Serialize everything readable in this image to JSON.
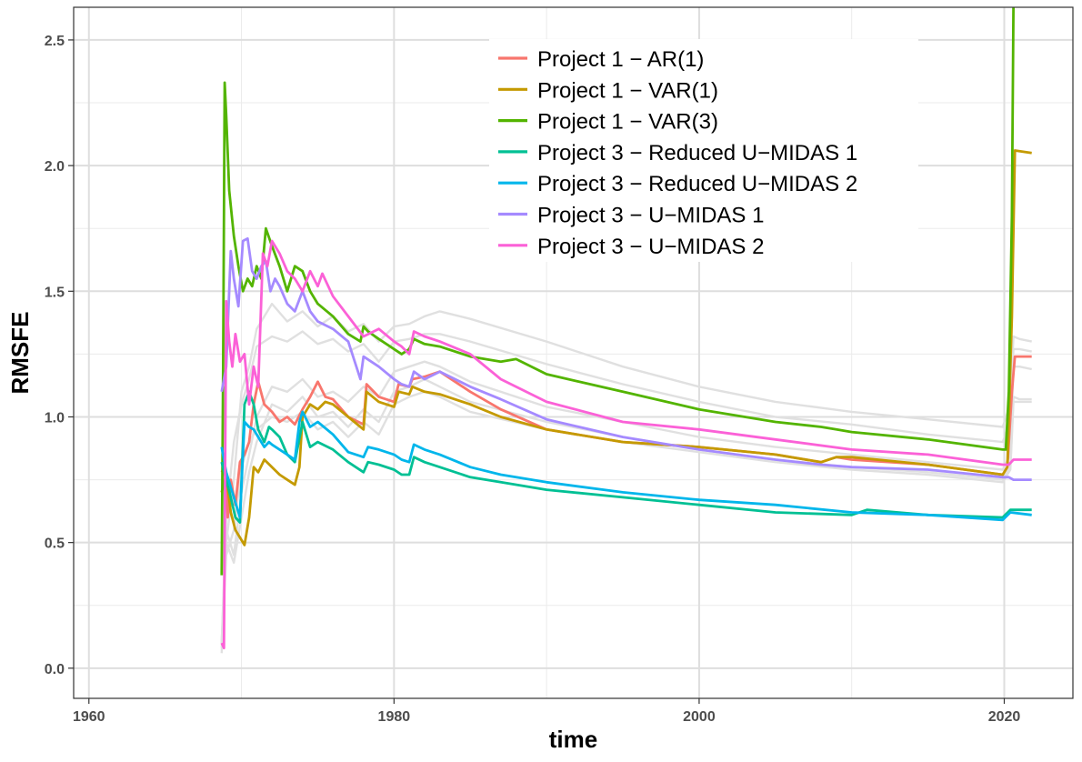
{
  "chart_data": {
    "type": "line",
    "title": "",
    "xlabel": "time",
    "ylabel": "RMSFE",
    "xlim": [
      1959,
      2024.5
    ],
    "ylim": [
      -0.12,
      2.63
    ],
    "x_ticks": [
      1960,
      1980,
      2000,
      2020
    ],
    "x_minor_ticks": [
      1970,
      1990,
      2010
    ],
    "y_ticks": [
      0.0,
      0.5,
      1.0,
      1.5,
      2.0,
      2.5
    ],
    "y_tick_labels": [
      "0.0",
      "0.5",
      "1.0",
      "1.5",
      "2.0",
      "2.5"
    ],
    "grid": true,
    "legend_position": "top-center (inside plot)",
    "background_series_color": "#e0e0e0",
    "background_series": [
      {
        "x": [
          1968.7,
          1969.0,
          1969.5,
          1970.0,
          1970.5,
          1971.0,
          1972.0,
          1973.0,
          1974.0,
          1975.0,
          1976.0,
          1977.0,
          1978.0,
          1979.0,
          1980.0,
          1981.0,
          1982.0,
          1983.0,
          1985.0,
          1990.0,
          1995.0,
          2000.0,
          2005.0,
          2010.0,
          2015.0,
          2019.9,
          2020.4,
          2020.6,
          2021.0,
          2021.8
        ],
        "y": [
          0.06,
          0.5,
          0.75,
          1.1,
          1.2,
          1.35,
          1.45,
          1.38,
          1.42,
          1.36,
          1.4,
          1.34,
          1.37,
          1.3,
          1.36,
          1.37,
          1.4,
          1.42,
          1.39,
          1.3,
          1.2,
          1.12,
          1.06,
          1.02,
          0.99,
          0.96,
          1.05,
          1.32,
          1.31,
          1.3
        ]
      },
      {
        "x": [
          1968.7,
          1969.0,
          1969.5,
          1970.0,
          1970.5,
          1971.0,
          1972.0,
          1973.0,
          1974.0,
          1975.0,
          1976.0,
          1977.0,
          1978.0,
          1979.0,
          1980.0,
          1981.0,
          1982.0,
          1983.0,
          1985.0,
          1990.0,
          1995.0,
          2000.0,
          2005.0,
          2010.0,
          2015.0,
          2019.9,
          2020.4,
          2020.6,
          2021.0,
          2021.8
        ],
        "y": [
          0.1,
          0.6,
          0.9,
          1.05,
          1.15,
          1.28,
          1.32,
          1.3,
          1.34,
          1.29,
          1.31,
          1.26,
          1.29,
          1.22,
          1.3,
          1.31,
          1.33,
          1.33,
          1.3,
          1.21,
          1.13,
          1.06,
          1.0,
          0.97,
          0.93,
          0.9,
          0.98,
          1.27,
          1.27,
          1.26
        ]
      },
      {
        "x": [
          1968.7,
          1969.0,
          1969.5,
          1970.0,
          1970.5,
          1971.0,
          1972.0,
          1973.0,
          1974.0,
          1975.0,
          1976.0,
          1977.0,
          1978.0,
          1979.0,
          1980.0,
          1981.0,
          1982.0,
          1983.0,
          1985.0,
          1990.0,
          1995.0,
          2000.0,
          2005.0,
          2010.0,
          2015.0,
          2019.9,
          2020.4,
          2020.6,
          2021.0,
          2021.8
        ],
        "y": [
          0.1,
          0.55,
          0.45,
          0.7,
          0.85,
          1.0,
          1.12,
          1.1,
          1.15,
          1.08,
          1.1,
          1.06,
          1.12,
          1.08,
          1.18,
          1.2,
          1.22,
          1.2,
          1.14,
          1.04,
          0.98,
          0.92,
          0.88,
          0.85,
          0.82,
          0.79,
          0.85,
          1.2,
          1.2,
          1.19
        ]
      },
      {
        "x": [
          1968.7,
          1969.0,
          1969.5,
          1970.0,
          1970.5,
          1971.0,
          1972.0,
          1973.0,
          1974.0,
          1975.0,
          1976.0,
          1977.0,
          1978.0,
          1979.0,
          1980.0,
          1981.0,
          1982.0,
          1983.0,
          1985.0,
          1990.0,
          1995.0,
          2000.0,
          2005.0,
          2010.0,
          2015.0,
          2019.9,
          2020.4,
          2020.6,
          2021.0,
          2021.8
        ],
        "y": [
          0.1,
          0.5,
          0.42,
          0.6,
          0.78,
          0.9,
          1.05,
          1.02,
          1.08,
          1.0,
          1.02,
          0.96,
          1.03,
          0.98,
          1.1,
          1.12,
          1.15,
          1.12,
          1.06,
          0.98,
          0.92,
          0.87,
          0.83,
          0.8,
          0.78,
          0.75,
          0.8,
          1.08,
          1.07,
          1.07
        ]
      },
      {
        "x": [
          1968.7,
          1969.0,
          1969.5,
          1970.0,
          1970.5,
          1971.0,
          1972.0,
          1973.0,
          1974.0,
          1975.0,
          1976.0,
          1977.0,
          1978.0,
          1979.0,
          1980.0,
          1981.0,
          1982.0,
          1983.0,
          1985.0,
          1990.0,
          1995.0,
          2000.0,
          2005.0,
          2010.0,
          2015.0,
          2019.9,
          2020.4,
          2020.6,
          2021.0,
          2021.8
        ],
        "y": [
          0.08,
          0.45,
          0.55,
          0.8,
          0.9,
          0.95,
          1.0,
          0.98,
          1.02,
          0.95,
          0.98,
          0.92,
          0.98,
          0.93,
          1.05,
          1.08,
          1.1,
          1.08,
          1.02,
          0.95,
          0.9,
          0.86,
          0.82,
          0.79,
          0.77,
          0.74,
          0.79,
          1.06,
          1.06,
          1.06
        ]
      }
    ],
    "series": [
      {
        "name": "Project 1 − AR(1)",
        "color": "#F8766D",
        "x": [
          1968.7,
          1968.9,
          1969.1,
          1969.3,
          1969.6,
          1969.9,
          1970.2,
          1970.5,
          1970.8,
          1971.1,
          1971.5,
          1972.0,
          1972.5,
          1973.0,
          1973.5,
          1974.0,
          1974.5,
          1975.0,
          1975.5,
          1976.0,
          1977.0,
          1978.0,
          1978.2,
          1979.0,
          1980.0,
          1980.3,
          1981.0,
          1981.2,
          1982.0,
          1983.0,
          1985.0,
          1987.0,
          1990.0,
          1995.0,
          2000.0,
          2005.0,
          2008.0,
          2009.0,
          2010.0,
          2015.0,
          2019.9,
          2020.2,
          2020.5,
          2020.7,
          2021.8
        ],
        "y": [
          0.78,
          0.8,
          0.6,
          0.75,
          0.65,
          0.82,
          0.85,
          0.9,
          1.05,
          1.14,
          1.05,
          1.02,
          0.98,
          1.0,
          0.97,
          1.03,
          1.08,
          1.14,
          1.08,
          1.07,
          1.0,
          0.97,
          1.13,
          1.08,
          1.06,
          1.13,
          1.12,
          1.15,
          1.16,
          1.18,
          1.1,
          1.03,
          0.95,
          0.9,
          0.88,
          0.85,
          0.82,
          0.84,
          0.83,
          0.81,
          0.77,
          0.8,
          1.1,
          1.24,
          1.24
        ]
      },
      {
        "name": "Project 1 − VAR(1)",
        "color": "#C49A00",
        "x": [
          1968.7,
          1968.9,
          1969.1,
          1969.3,
          1969.6,
          1969.9,
          1970.2,
          1970.5,
          1970.8,
          1971.1,
          1971.5,
          1972.0,
          1972.5,
          1973.0,
          1973.5,
          1973.8,
          1974.0,
          1974.5,
          1975.0,
          1975.5,
          1976.0,
          1977.0,
          1978.0,
          1978.2,
          1979.0,
          1980.0,
          1980.3,
          1981.0,
          1981.2,
          1982.0,
          1983.0,
          1985.0,
          1987.0,
          1990.0,
          1995.0,
          2000.0,
          2005.0,
          2008.0,
          2009.0,
          2010.0,
          2015.0,
          2019.9,
          2020.2,
          2020.5,
          2020.7,
          2021.8
        ],
        "y": [
          0.7,
          0.75,
          0.72,
          0.62,
          0.55,
          0.52,
          0.49,
          0.6,
          0.8,
          0.78,
          0.83,
          0.8,
          0.77,
          0.75,
          0.73,
          0.8,
          1.0,
          1.05,
          1.03,
          1.06,
          1.05,
          1.0,
          0.95,
          1.1,
          1.06,
          1.04,
          1.1,
          1.09,
          1.12,
          1.1,
          1.09,
          1.05,
          1.0,
          0.95,
          0.9,
          0.88,
          0.85,
          0.82,
          0.84,
          0.84,
          0.81,
          0.77,
          0.8,
          1.4,
          2.06,
          2.05
        ]
      },
      {
        "name": "Project 1 − VAR(3)",
        "color": "#53B400",
        "x": [
          1968.7,
          1968.8,
          1968.9,
          1969.0,
          1969.2,
          1969.5,
          1969.8,
          1970.1,
          1970.4,
          1970.7,
          1971.0,
          1971.3,
          1971.6,
          1972.0,
          1972.5,
          1973.0,
          1973.5,
          1974.0,
          1974.5,
          1975.0,
          1976.0,
          1977.0,
          1977.8,
          1978.0,
          1978.3,
          1979.0,
          1980.0,
          1980.5,
          1981.0,
          1981.3,
          1982.0,
          1983.0,
          1985.0,
          1987.0,
          1988.0,
          1990.0,
          1995.0,
          2000.0,
          2005.0,
          2008.0,
          2009.0,
          2010.0,
          2015.0,
          2019.9,
          2020.1,
          2020.3,
          2020.5,
          2020.6
        ],
        "y": [
          0.37,
          1.2,
          2.33,
          2.2,
          1.9,
          1.72,
          1.6,
          1.5,
          1.55,
          1.52,
          1.6,
          1.55,
          1.75,
          1.68,
          1.6,
          1.5,
          1.6,
          1.58,
          1.5,
          1.45,
          1.4,
          1.33,
          1.3,
          1.36,
          1.34,
          1.31,
          1.27,
          1.25,
          1.27,
          1.31,
          1.29,
          1.28,
          1.24,
          1.22,
          1.23,
          1.17,
          1.1,
          1.03,
          0.98,
          0.96,
          0.95,
          0.94,
          0.91,
          0.87,
          0.87,
          1.1,
          1.8,
          2.63
        ]
      },
      {
        "name": "Project 3 − Reduced U−MIDAS 1",
        "color": "#00C094",
        "x": [
          1968.7,
          1969.0,
          1969.3,
          1969.6,
          1969.9,
          1970.2,
          1970.5,
          1970.8,
          1971.1,
          1971.5,
          1971.8,
          1972.0,
          1972.5,
          1973.0,
          1973.5,
          1974.0,
          1974.5,
          1975.0,
          1976.0,
          1977.0,
          1978.0,
          1978.3,
          1979.0,
          1980.0,
          1980.5,
          1981.0,
          1981.3,
          1982.0,
          1983.0,
          1985.0,
          1987.0,
          1990.0,
          1995.0,
          2000.0,
          2005.0,
          2010.0,
          2011.0,
          2015.0,
          2019.9,
          2020.4,
          2021.8
        ],
        "y": [
          0.82,
          0.75,
          0.68,
          0.6,
          0.58,
          1.05,
          1.1,
          1.05,
          0.95,
          0.9,
          0.96,
          0.95,
          0.92,
          0.85,
          0.82,
          0.98,
          0.88,
          0.9,
          0.87,
          0.82,
          0.78,
          0.82,
          0.81,
          0.79,
          0.77,
          0.77,
          0.84,
          0.82,
          0.8,
          0.76,
          0.74,
          0.71,
          0.68,
          0.65,
          0.62,
          0.61,
          0.63,
          0.61,
          0.6,
          0.63,
          0.63
        ]
      },
      {
        "name": "Project 3 − Reduced U−MIDAS 2",
        "color": "#00B6EB",
        "x": [
          1968.7,
          1969.0,
          1969.3,
          1969.6,
          1969.9,
          1970.2,
          1970.5,
          1970.8,
          1971.1,
          1971.5,
          1971.8,
          1972.0,
          1972.5,
          1973.0,
          1973.5,
          1973.8,
          1974.0,
          1974.5,
          1975.0,
          1976.0,
          1977.0,
          1978.0,
          1978.3,
          1979.0,
          1980.0,
          1980.5,
          1981.0,
          1981.3,
          1982.0,
          1983.0,
          1985.0,
          1987.0,
          1990.0,
          1995.0,
          2000.0,
          2005.0,
          2010.0,
          2015.0,
          2019.9,
          2020.4,
          2021.8
        ],
        "y": [
          0.88,
          0.78,
          0.72,
          0.66,
          0.6,
          0.98,
          0.96,
          0.95,
          0.92,
          0.88,
          0.9,
          0.89,
          0.87,
          0.85,
          0.83,
          0.98,
          1.02,
          0.96,
          0.98,
          0.93,
          0.86,
          0.84,
          0.88,
          0.87,
          0.85,
          0.83,
          0.82,
          0.89,
          0.87,
          0.85,
          0.8,
          0.77,
          0.74,
          0.7,
          0.67,
          0.65,
          0.62,
          0.61,
          0.59,
          0.62,
          0.61
        ]
      },
      {
        "name": "Project 3 − U−MIDAS 1",
        "color": "#A58AFF",
        "x": [
          1968.7,
          1969.0,
          1969.3,
          1969.5,
          1969.8,
          1970.1,
          1970.4,
          1970.7,
          1971.0,
          1971.3,
          1971.6,
          1971.9,
          1972.2,
          1972.5,
          1973.0,
          1973.5,
          1974.0,
          1974.5,
          1975.0,
          1976.0,
          1977.0,
          1977.8,
          1978.0,
          1979.0,
          1980.0,
          1980.5,
          1981.0,
          1981.3,
          1982.0,
          1983.0,
          1985.0,
          1987.0,
          1990.0,
          1995.0,
          2000.0,
          2005.0,
          2008.0,
          2010.0,
          2015.0,
          2019.9,
          2020.3,
          2020.6,
          2021.8
        ],
        "y": [
          1.1,
          1.2,
          1.66,
          1.55,
          1.44,
          1.7,
          1.71,
          1.58,
          1.55,
          1.6,
          1.62,
          1.5,
          1.55,
          1.52,
          1.45,
          1.42,
          1.5,
          1.42,
          1.38,
          1.35,
          1.3,
          1.15,
          1.24,
          1.2,
          1.15,
          1.13,
          1.12,
          1.18,
          1.15,
          1.18,
          1.12,
          1.07,
          0.99,
          0.92,
          0.87,
          0.83,
          0.81,
          0.8,
          0.79,
          0.76,
          0.76,
          0.75,
          0.75
        ]
      },
      {
        "name": "Project 3 − U−MIDAS 2",
        "color": "#FB61D7",
        "x": [
          1968.7,
          1968.85,
          1969.0,
          1969.2,
          1969.4,
          1969.6,
          1969.9,
          1970.2,
          1970.5,
          1970.8,
          1971.1,
          1971.4,
          1971.7,
          1972.0,
          1972.5,
          1973.0,
          1973.5,
          1974.0,
          1974.5,
          1975.0,
          1975.3,
          1976.0,
          1977.0,
          1978.0,
          1979.0,
          1980.0,
          1980.5,
          1981.0,
          1981.3,
          1982.0,
          1983.0,
          1985.0,
          1987.0,
          1990.0,
          1995.0,
          2000.0,
          2005.0,
          2010.0,
          2015.0,
          2019.9,
          2020.3,
          2020.6,
          2021.8
        ],
        "y": [
          0.1,
          0.08,
          1.46,
          1.3,
          1.2,
          1.33,
          1.22,
          1.25,
          1.05,
          1.2,
          1.12,
          1.65,
          1.6,
          1.7,
          1.65,
          1.58,
          1.55,
          1.5,
          1.58,
          1.52,
          1.57,
          1.48,
          1.4,
          1.32,
          1.35,
          1.3,
          1.28,
          1.25,
          1.34,
          1.32,
          1.3,
          1.25,
          1.15,
          1.06,
          0.98,
          0.95,
          0.91,
          0.87,
          0.85,
          0.81,
          0.81,
          0.83,
          0.83
        ]
      }
    ]
  }
}
